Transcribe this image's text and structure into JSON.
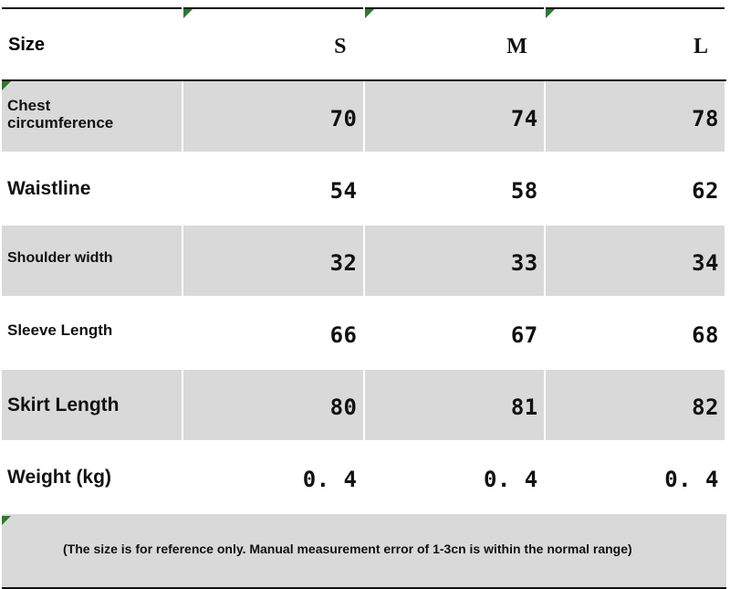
{
  "size_table": {
    "header": {
      "size_label": "Size",
      "columns": [
        "S",
        "M",
        "L"
      ]
    },
    "rows": [
      {
        "label": "Chest\ncircumference",
        "values": [
          "70",
          "74",
          "78"
        ]
      },
      {
        "label": "Waistline",
        "values": [
          "54",
          "58",
          "62"
        ]
      },
      {
        "label": "Shoulder width",
        "values": [
          "32",
          "33",
          "34"
        ]
      },
      {
        "label": "Sleeve Length",
        "values": [
          "66",
          "67",
          "68"
        ]
      },
      {
        "label": "Skirt Length",
        "values": [
          "80",
          "81",
          "82"
        ]
      },
      {
        "label": "Weight (kg)",
        "values": [
          "0. 4",
          "0. 4",
          "0. 4"
        ]
      }
    ],
    "note": "(The size is for reference only. Manual measurement error of 1-3cn is within the normal range)"
  },
  "colors": {
    "band_gray": "#d9d9d9",
    "text": "#111111",
    "corner_marker": "#2a7b2a"
  }
}
